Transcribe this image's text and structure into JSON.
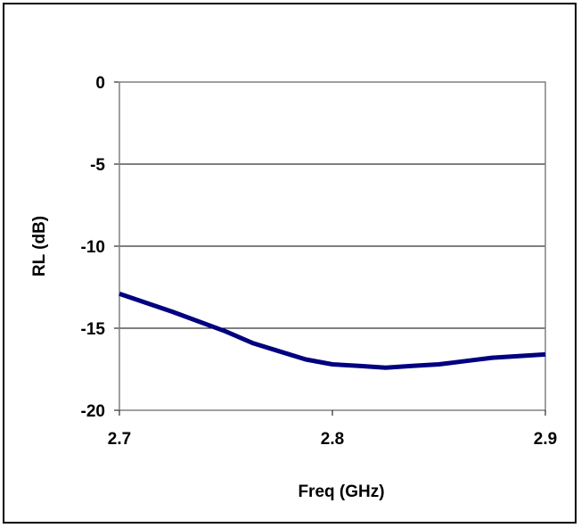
{
  "chart_data": {
    "type": "line",
    "title": "",
    "xlabel": "Freq (GHz)",
    "ylabel": "RL (dB)",
    "xlim": [
      2.7,
      2.9
    ],
    "ylim": [
      -20,
      0
    ],
    "x_ticks": [
      2.7,
      2.8,
      2.9
    ],
    "x_tick_labels": [
      "2.7",
      "2.8",
      "2.9"
    ],
    "y_ticks": [
      0,
      -5,
      -10,
      -15,
      -20
    ],
    "y_tick_labels": [
      "0",
      "-5",
      "-10",
      "-15",
      "-20"
    ],
    "grid": "horizontal",
    "legend": "none",
    "series": [
      {
        "color": "#000080",
        "x": [
          2.7,
          2.725,
          2.75,
          2.7625,
          2.775,
          2.7875,
          2.8,
          2.8125,
          2.825,
          2.8375,
          2.85,
          2.8625,
          2.875,
          2.8875,
          2.9
        ],
        "y": [
          -12.9,
          -14.0,
          -15.2,
          -15.9,
          -16.4,
          -16.9,
          -17.2,
          -17.3,
          -17.4,
          -17.3,
          -17.2,
          -17.0,
          -16.8,
          -16.7,
          -16.6
        ]
      }
    ]
  }
}
